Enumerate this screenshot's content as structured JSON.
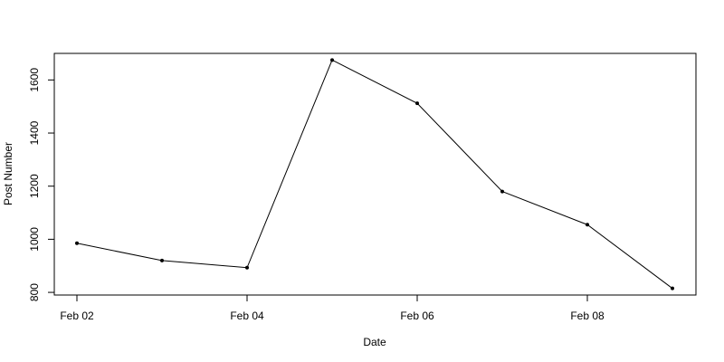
{
  "chart_data": {
    "type": "line",
    "xlabel": "Date",
    "ylabel": "Post Number",
    "x": [
      "Feb 02",
      "Feb 03",
      "Feb 04",
      "Feb 05",
      "Feb 06",
      "Feb 07",
      "Feb 08",
      "Feb 09"
    ],
    "series": [
      {
        "values": [
          985,
          920,
          893,
          1675,
          1512,
          1180,
          1055,
          815
        ]
      }
    ],
    "x_ticks": [
      "Feb 02",
      "Feb 04",
      "Feb 06",
      "Feb 08"
    ],
    "y_ticks": [
      800,
      1000,
      1200,
      1400,
      1600
    ],
    "ylim": [
      790,
      1700
    ],
    "grid": false,
    "line_color": "#000000",
    "point_color": "#000000"
  }
}
